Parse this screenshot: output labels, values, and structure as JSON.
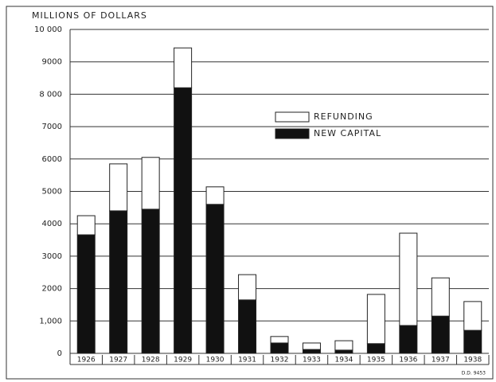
{
  "chart_data": {
    "type": "stacked_bar",
    "title": "MILLIONS OF DOLLARS",
    "note": "D.D. 9453",
    "categories": [
      "1926",
      "1927",
      "1928",
      "1929",
      "1930",
      "1931",
      "1932",
      "1933",
      "1934",
      "1935",
      "1936",
      "1937",
      "1938"
    ],
    "series": [
      {
        "name": "NEW CAPITAL",
        "color": "#111111",
        "values": [
          3660,
          4400,
          4450,
          8200,
          4600,
          1650,
          320,
          120,
          100,
          300,
          860,
          1150,
          710
        ]
      },
      {
        "name": "REFUNDING",
        "color": "#ffffff",
        "values": [
          590,
          1450,
          1600,
          1230,
          540,
          780,
          200,
          200,
          290,
          1520,
          2850,
          1180,
          890
        ]
      }
    ],
    "ylim": [
      0,
      10000
    ],
    "yticks": [
      0,
      {
        "value": 1000,
        "label": "1,000"
      },
      2000,
      3000,
      4000,
      5000,
      6000,
      7000,
      {
        "value": 8000,
        "label": "8 000"
      },
      9000,
      {
        "value": 10000,
        "label": "10 000"
      }
    ],
    "grid": true
  }
}
